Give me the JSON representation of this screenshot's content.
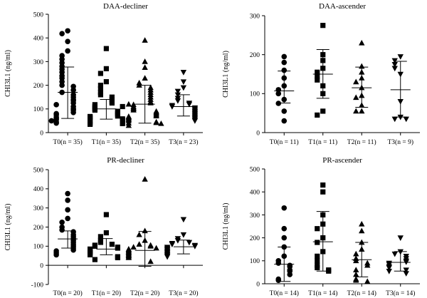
{
  "chart_data": [
    {
      "type": "scatter",
      "title": "DAA-decliner",
      "ylabel": "CHI3L1 (ng/ml)",
      "ylim": [
        0,
        500
      ],
      "yticks": [
        0,
        100,
        200,
        300,
        400,
        500
      ],
      "categories": [
        "T0(n = 35)",
        "T1(n = 35)",
        "T2(n = 35)",
        "T3(n = 23)"
      ],
      "markers": [
        "circle",
        "square",
        "triangle",
        "triangle-down"
      ],
      "series": [
        {
          "values": [
            430,
            418,
            385,
            345,
            325,
            310,
            295,
            280,
            268,
            255,
            240,
            230,
            215,
            200,
            195,
            180,
            170,
            160,
            150,
            140,
            135,
            125,
            118,
            110,
            100,
            95,
            85,
            80,
            75,
            65,
            60,
            55,
            45,
            40,
            50
          ],
          "mean": 170,
          "sd_low": 60,
          "sd_high": 277
        },
        {
          "values": [
            355,
            270,
            250,
            215,
            200,
            185,
            170,
            160,
            150,
            140,
            130,
            125,
            118,
            110,
            105,
            100,
            95,
            90,
            85,
            80,
            75,
            70,
            68,
            65,
            60,
            58,
            55,
            50,
            48,
            45,
            42,
            40,
            38,
            35,
            110
          ],
          "mean": 100,
          "sd_low": 57,
          "sd_high": 140
        },
        {
          "values": [
            390,
            300,
            275,
            230,
            210,
            200,
            190,
            180,
            170,
            160,
            150,
            140,
            130,
            125,
            118,
            110,
            105,
            100,
            95,
            90,
            85,
            80,
            75,
            70,
            68,
            65,
            60,
            55,
            50,
            45,
            42,
            40,
            38,
            30,
            120
          ],
          "mean": 120,
          "sd_low": 40,
          "sd_high": 200
        },
        {
          "values": [
            255,
            215,
            190,
            175,
            160,
            145,
            135,
            125,
            120,
            115,
            110,
            105,
            100,
            95,
            90,
            85,
            80,
            75,
            70,
            65,
            60,
            55,
            50
          ],
          "mean": 110,
          "sd_low": 70,
          "sd_high": 160
        }
      ]
    },
    {
      "type": "scatter",
      "title": "DAA-ascender",
      "ylabel": "CHI3L1 (ng/ml)",
      "ylim": [
        0,
        300
      ],
      "yticks": [
        0,
        100,
        200,
        300
      ],
      "categories": [
        "T0(n = 11)",
        "T1(n = 11)",
        "T2(n = 11)",
        "T3(n = 9)"
      ],
      "markers": [
        "circle",
        "square",
        "triangle",
        "triangle-down"
      ],
      "series": [
        {
          "values": [
            195,
            180,
            160,
            140,
            120,
            110,
            100,
            85,
            75,
            55,
            30
          ],
          "mean": 107,
          "sd_low": 76,
          "sd_high": 158
        },
        {
          "values": [
            275,
            200,
            185,
            165,
            155,
            145,
            135,
            120,
            100,
            55,
            45
          ],
          "mean": 150,
          "sd_low": 88,
          "sd_high": 213
        },
        {
          "values": [
            230,
            170,
            155,
            140,
            130,
            115,
            95,
            90,
            70,
            55,
            55
          ],
          "mean": 115,
          "sd_low": 65,
          "sd_high": 168
        },
        {
          "values": [
            195,
            185,
            175,
            165,
            150,
            80,
            40,
            35,
            35
          ],
          "mean": 110,
          "sd_low": 40,
          "sd_high": 183
        }
      ]
    },
    {
      "type": "scatter",
      "title": "PR-decliner",
      "ylabel": "CHI3L1 (ng/ml)",
      "ylim": [
        -100,
        500
      ],
      "yticks": [
        -100,
        0,
        100,
        200,
        300,
        400,
        500
      ],
      "categories": [
        "T0(n = 20)",
        "T1(n = 20)",
        "T2(n = 20)",
        "T3(n = 20)"
      ],
      "markers": [
        "circle",
        "square",
        "triangle",
        "triangle-down"
      ],
      "series": [
        {
          "values": [
            375,
            340,
            290,
            245,
            225,
            200,
            185,
            175,
            160,
            150,
            140,
            130,
            120,
            110,
            100,
            90,
            80,
            75,
            65,
            55
          ],
          "mean": 138,
          "sd_low": 90,
          "sd_high": 180
        },
        {
          "values": [
            265,
            170,
            150,
            130,
            120,
            110,
            105,
            100,
            95,
            90,
            85,
            80,
            75,
            70,
            65,
            60,
            55,
            45,
            40,
            30
          ],
          "mean": 85,
          "sd_low": 55,
          "sd_high": 140
        },
        {
          "values": [
            450,
            180,
            160,
            130,
            110,
            105,
            100,
            95,
            90,
            85,
            80,
            75,
            70,
            65,
            60,
            55,
            50,
            45,
            40,
            20
          ],
          "mean": 78,
          "sd_low": -5,
          "sd_high": 177
        },
        {
          "values": [
            240,
            160,
            140,
            130,
            120,
            115,
            110,
            105,
            100,
            95,
            90,
            85,
            80,
            75,
            70,
            65,
            60,
            55,
            50,
            45
          ],
          "mean": 97,
          "sd_low": 60,
          "sd_high": 132
        }
      ]
    },
    {
      "type": "scatter",
      "title": "PR-ascender",
      "ylabel": "CHI3L1 (ng/ml)",
      "ylim": [
        0,
        500
      ],
      "yticks": [
        0,
        100,
        200,
        300,
        400,
        500
      ],
      "categories": [
        "T0(n = 14)",
        "T1(n = 14)",
        "T2(n = 14)",
        "T3(n = 14)"
      ],
      "markers": [
        "circle",
        "square",
        "triangle",
        "triangle-down"
      ],
      "series": [
        {
          "values": [
            330,
            240,
            200,
            160,
            120,
            100,
            90,
            80,
            75,
            60,
            55,
            40,
            20,
            15
          ],
          "mean": 85,
          "sd_low": 10,
          "sd_high": 160
        },
        {
          "values": [
            430,
            400,
            300,
            260,
            240,
            200,
            180,
            140,
            120,
            100,
            80,
            70,
            60,
            55
          ],
          "mean": 183,
          "sd_low": 55,
          "sd_high": 315
        },
        {
          "values": [
            260,
            230,
            180,
            150,
            130,
            110,
            100,
            90,
            80,
            60,
            40,
            20,
            15,
            10
          ],
          "mean": 105,
          "sd_low": 30,
          "sd_high": 180
        },
        {
          "values": [
            200,
            140,
            130,
            120,
            110,
            100,
            95,
            90,
            85,
            75,
            70,
            60,
            55,
            45
          ],
          "mean": 93,
          "sd_low": 55,
          "sd_high": 140
        }
      ]
    }
  ]
}
